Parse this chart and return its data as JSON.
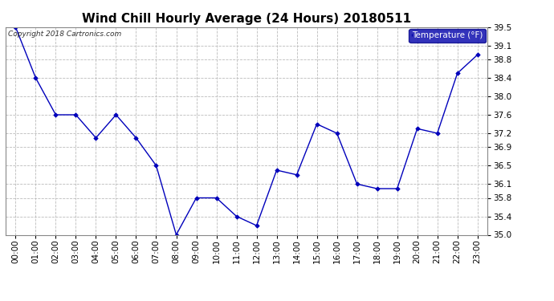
{
  "title": "Wind Chill Hourly Average (24 Hours) 20180511",
  "copyright": "Copyright 2018 Cartronics.com",
  "legend_label": "Temperature (°F)",
  "hours": [
    "00:00",
    "01:00",
    "02:00",
    "03:00",
    "04:00",
    "05:00",
    "06:00",
    "07:00",
    "08:00",
    "09:00",
    "10:00",
    "11:00",
    "12:00",
    "13:00",
    "14:00",
    "15:00",
    "16:00",
    "17:00",
    "18:00",
    "19:00",
    "20:00",
    "21:00",
    "22:00",
    "23:00"
  ],
  "values": [
    39.5,
    38.4,
    37.6,
    37.6,
    37.1,
    37.6,
    37.1,
    36.5,
    35.0,
    35.8,
    35.8,
    35.4,
    35.2,
    36.4,
    36.3,
    37.4,
    37.2,
    36.1,
    36.0,
    36.0,
    37.3,
    37.2,
    38.5,
    38.9
  ],
  "ylim_min": 35.0,
  "ylim_max": 39.5,
  "yticks": [
    35.0,
    35.4,
    35.8,
    36.1,
    36.5,
    36.9,
    37.2,
    37.6,
    38.0,
    38.4,
    38.8,
    39.1,
    39.5
  ],
  "line_color": "#0000bb",
  "marker_color": "#0000bb",
  "bg_color": "#ffffff",
  "plot_bg_color": "#ffffff",
  "grid_color": "#bbbbbb",
  "title_fontsize": 11,
  "copyright_fontsize": 6.5,
  "tick_fontsize": 7.5,
  "legend_bg": "#0000aa",
  "legend_fg": "#ffffff"
}
